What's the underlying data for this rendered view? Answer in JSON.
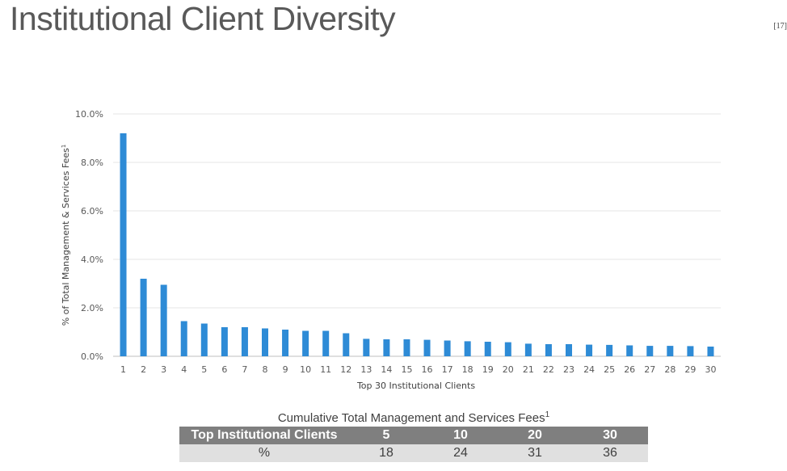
{
  "header": {
    "title": "Institutional Client Diversity",
    "page_ref": "[17]"
  },
  "chart_data": {
    "type": "bar",
    "title": "",
    "xlabel": "Top 30 Institutional Clients",
    "ylabel": "% of Total Management & Services Fees",
    "ylabel_superscript": "1",
    "ylim": [
      0,
      10
    ],
    "y_ticks": [
      "0.0%",
      "2.0%",
      "4.0%",
      "6.0%",
      "8.0%",
      "10.0%"
    ],
    "grid": true,
    "bar_color": "#2e8bd6",
    "categories": [
      "1",
      "2",
      "3",
      "4",
      "5",
      "6",
      "7",
      "8",
      "9",
      "10",
      "11",
      "12",
      "13",
      "14",
      "15",
      "16",
      "17",
      "18",
      "19",
      "20",
      "21",
      "22",
      "23",
      "24",
      "25",
      "26",
      "27",
      "28",
      "29",
      "30"
    ],
    "values": [
      9.2,
      3.2,
      2.95,
      1.45,
      1.35,
      1.2,
      1.2,
      1.15,
      1.1,
      1.05,
      1.05,
      0.95,
      0.72,
      0.7,
      0.7,
      0.68,
      0.65,
      0.62,
      0.6,
      0.58,
      0.52,
      0.5,
      0.5,
      0.48,
      0.47,
      0.45,
      0.43,
      0.43,
      0.42,
      0.4
    ]
  },
  "fees_table": {
    "caption": "Cumulative Total Management and Services Fees",
    "caption_superscript": "1",
    "header": [
      "Top Institutional Clients",
      "5",
      "10",
      "20",
      "30"
    ],
    "row": [
      "%",
      "18",
      "24",
      "31",
      "36"
    ],
    "header_color": "#7f7f7f",
    "row_color": "#e0e0e0"
  }
}
